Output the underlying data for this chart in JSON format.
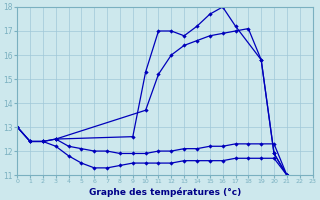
{
  "title": "Graphe des températures (°c)",
  "background_color": "#cde8ed",
  "grid_color": "#a0c8d8",
  "line_color": "#0000bb",
  "xlim": [
    0,
    23
  ],
  "ylim": [
    11,
    18
  ],
  "xticks": [
    0,
    1,
    2,
    3,
    4,
    5,
    6,
    7,
    8,
    9,
    10,
    11,
    12,
    13,
    14,
    15,
    16,
    17,
    18,
    19,
    20,
    21,
    22,
    23
  ],
  "yticks": [
    11,
    12,
    13,
    14,
    15,
    16,
    17,
    18
  ],
  "curve1_x": [
    0,
    1,
    2,
    3,
    9,
    10,
    11,
    12,
    13,
    14,
    15,
    16,
    17,
    19,
    20,
    21
  ],
  "curve1_y": [
    13.0,
    12.4,
    12.4,
    12.5,
    12.6,
    15.3,
    17.0,
    17.0,
    16.8,
    17.2,
    17.7,
    18.0,
    17.2,
    15.8,
    11.9,
    11.0
  ],
  "curve2_x": [
    3,
    10,
    11,
    12,
    13,
    14,
    15,
    16,
    17,
    18,
    19,
    20,
    21
  ],
  "curve2_y": [
    12.5,
    13.7,
    15.2,
    16.0,
    16.4,
    16.6,
    16.8,
    16.9,
    17.0,
    17.1,
    15.8,
    11.9,
    11.0
  ],
  "curve3_x": [
    0,
    1,
    2,
    3,
    4,
    5,
    6,
    7,
    8,
    9,
    10,
    11,
    12,
    13,
    14,
    15,
    16,
    17,
    18,
    19,
    20,
    21
  ],
  "curve3_y": [
    13.0,
    12.4,
    12.4,
    12.5,
    12.2,
    12.1,
    12.0,
    12.0,
    11.9,
    11.9,
    11.9,
    12.0,
    12.0,
    12.1,
    12.1,
    12.2,
    12.2,
    12.3,
    12.3,
    12.3,
    12.3,
    11.0
  ],
  "curve4_x": [
    0,
    1,
    2,
    3,
    4,
    5,
    6,
    7,
    8,
    9,
    10,
    11,
    12,
    13,
    14,
    15,
    16,
    17,
    18,
    19,
    20,
    21
  ],
  "curve4_y": [
    13.0,
    12.4,
    12.4,
    12.2,
    11.8,
    11.5,
    11.3,
    11.3,
    11.4,
    11.5,
    11.5,
    11.5,
    11.5,
    11.6,
    11.6,
    11.6,
    11.6,
    11.7,
    11.7,
    11.7,
    11.7,
    11.0
  ]
}
